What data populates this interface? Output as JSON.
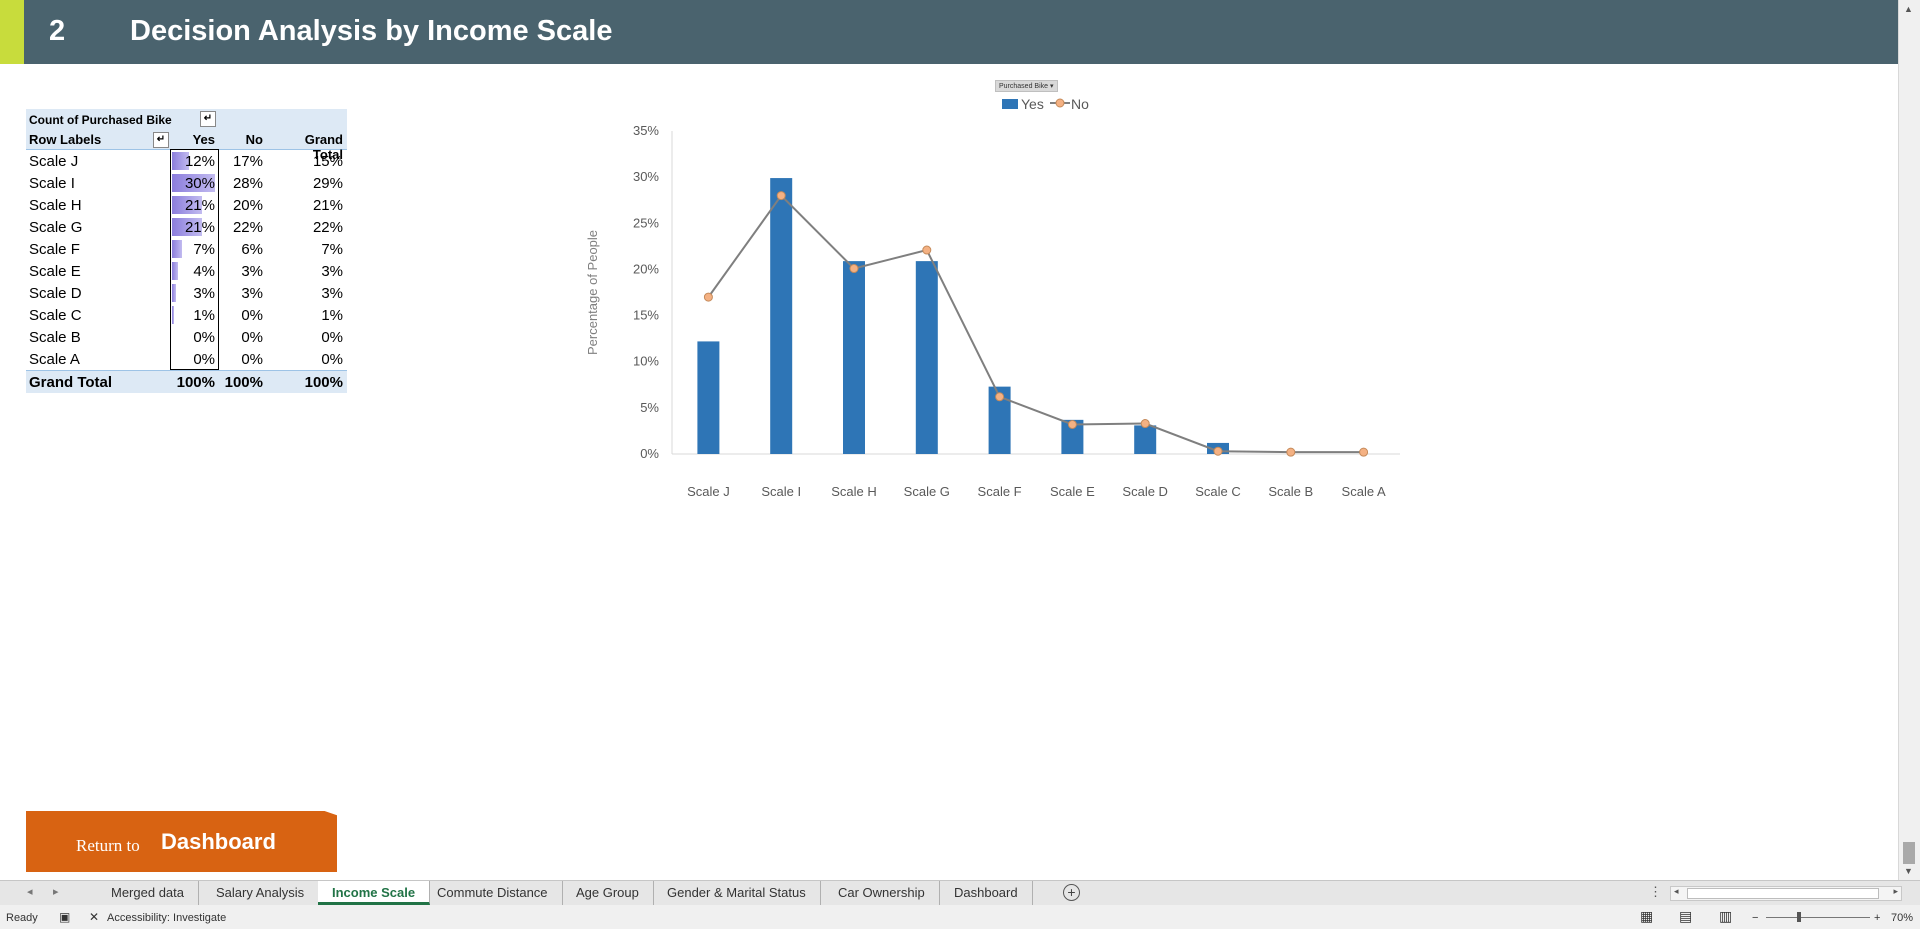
{
  "header": {
    "number": "2",
    "title": "Decision Analysis by Income Scale"
  },
  "pivot": {
    "measure_label": "Count of Purchased Bike",
    "row_labels_header": "Row Labels",
    "columns": [
      "Yes",
      "No",
      "Grand Total"
    ],
    "rows": [
      {
        "label": "Scale J",
        "yes": "12%",
        "no": "17%",
        "gt": "15%",
        "bar": 0.4
      },
      {
        "label": "Scale I",
        "yes": "30%",
        "no": "28%",
        "gt": "29%",
        "bar": 1.0
      },
      {
        "label": "Scale H",
        "yes": "21%",
        "no": "20%",
        "gt": "21%",
        "bar": 0.7
      },
      {
        "label": "Scale G",
        "yes": "21%",
        "no": "22%",
        "gt": "22%",
        "bar": 0.7
      },
      {
        "label": "Scale F",
        "yes": "7%",
        "no": "6%",
        "gt": "7%",
        "bar": 0.23
      },
      {
        "label": "Scale E",
        "yes": "4%",
        "no": "3%",
        "gt": "3%",
        "bar": 0.13
      },
      {
        "label": "Scale D",
        "yes": "3%",
        "no": "3%",
        "gt": "3%",
        "bar": 0.1
      },
      {
        "label": "Scale C",
        "yes": "1%",
        "no": "0%",
        "gt": "1%",
        "bar": 0.04
      },
      {
        "label": "Scale B",
        "yes": "0%",
        "no": "0%",
        "gt": "0%",
        "bar": 0
      },
      {
        "label": "Scale A",
        "yes": "0%",
        "no": "0%",
        "gt": "0%",
        "bar": 0
      }
    ],
    "total": {
      "label": "Grand Total",
      "yes": "100%",
      "no": "100%",
      "gt": "100%"
    },
    "bar_color": "#8b7ddc"
  },
  "chart_data": {
    "type": "bar",
    "filter_button": "Purchased Bike",
    "categories": [
      "Scale J",
      "Scale I",
      "Scale H",
      "Scale G",
      "Scale F",
      "Scale E",
      "Scale D",
      "Scale C",
      "Scale B",
      "Scale A"
    ],
    "series": [
      {
        "name": "Yes",
        "type": "bar",
        "color": "#2e75b6",
        "values": [
          12.2,
          29.9,
          20.9,
          20.9,
          7.3,
          3.7,
          3.1,
          1.2,
          0,
          0
        ]
      },
      {
        "name": "No",
        "type": "line",
        "color": "#7f7f7f",
        "marker_color": "#f4b183",
        "values": [
          17.0,
          28.0,
          20.1,
          22.1,
          6.2,
          3.2,
          3.3,
          0.3,
          0.2,
          0.2
        ]
      }
    ],
    "xlabel": "",
    "ylabel": "Percentage of People",
    "ylim": [
      0,
      35
    ],
    "yticks": [
      "0%",
      "5%",
      "10%",
      "15%",
      "20%",
      "25%",
      "30%",
      "35%"
    ],
    "legend": "top-center",
    "grid": false
  },
  "return_button": {
    "small": "Return to",
    "big": "Dashboard"
  },
  "sheet_tabs": [
    "Merged data",
    "Salary Analysis",
    "Income Scale",
    "Commute Distance",
    "Age Group",
    "Gender & Marital Status",
    "Car Ownership",
    "Dashboard"
  ],
  "active_tab": "Income Scale",
  "status": {
    "ready": "Ready",
    "accessibility": "Accessibility: Investigate",
    "zoom": "70%"
  }
}
